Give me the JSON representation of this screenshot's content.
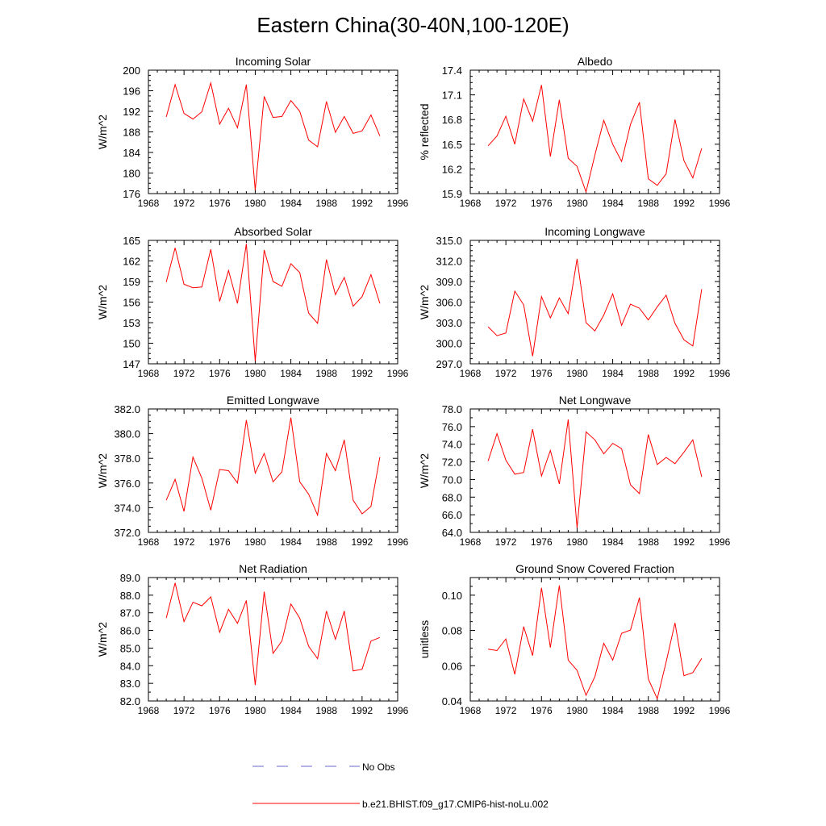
{
  "page_title": "Eastern China(30-40N,100-120E)",
  "legend": [
    {
      "label": "No Obs",
      "color": "#6a6acd",
      "dash": true
    },
    {
      "label": "b.e21.BHIST.f09_g17.CMIP6-hist-noLu.002",
      "color": "#ff0000",
      "dash": false
    }
  ],
  "chart_data": [
    {
      "type": "line",
      "title": "Incoming Solar",
      "ylabel": "W/m^2",
      "xlim": [
        1968,
        1996
      ],
      "ylim": [
        176,
        200
      ],
      "xticks": [
        "1968",
        "1972",
        "1976",
        "1980",
        "1984",
        "1988",
        "1992",
        "1996"
      ],
      "yticks": [
        "176",
        "180",
        "184",
        "188",
        "192",
        "196",
        "200"
      ],
      "x": [
        1970,
        1971,
        1972,
        1973,
        1974,
        1975,
        1976,
        1977,
        1978,
        1979,
        1980,
        1981,
        1982,
        1983,
        1984,
        1985,
        1986,
        1987,
        1988,
        1989,
        1990,
        1991,
        1992,
        1993,
        1994
      ],
      "series": [
        {
          "values": [
            190.9,
            197.2,
            191.6,
            190.5,
            191.9,
            197.5,
            189.5,
            192.6,
            188.8,
            197.2,
            176.7,
            194.9,
            190.8,
            191.0,
            194.1,
            192.0,
            186.4,
            185.1,
            193.9,
            187.9,
            191.0,
            187.7,
            188.2,
            191.3,
            187.2
          ],
          "color": "#ff0000"
        }
      ]
    },
    {
      "type": "line",
      "title": "Albedo",
      "ylabel": "% reflected",
      "xlim": [
        1968,
        1996
      ],
      "ylim": [
        15.9,
        17.4
      ],
      "xticks": [
        "1968",
        "1972",
        "1976",
        "1980",
        "1984",
        "1988",
        "1992",
        "1996"
      ],
      "yticks": [
        "15.9",
        "16.2",
        "16.5",
        "16.8",
        "17.1",
        "17.4"
      ],
      "x": [
        1970,
        1971,
        1972,
        1973,
        1974,
        1975,
        1976,
        1977,
        1978,
        1979,
        1980,
        1981,
        1982,
        1983,
        1984,
        1985,
        1986,
        1987,
        1988,
        1989,
        1990,
        1991,
        1992,
        1993,
        1994
      ],
      "series": [
        {
          "values": [
            16.48,
            16.6,
            16.84,
            16.5,
            17.05,
            16.78,
            17.22,
            16.35,
            17.04,
            16.33,
            16.23,
            15.92,
            16.37,
            16.79,
            16.5,
            16.29,
            16.74,
            17.01,
            16.08,
            16.0,
            16.14,
            16.8,
            16.3,
            16.09,
            16.45
          ],
          "color": "#ff0000"
        }
      ]
    },
    {
      "type": "line",
      "title": "Absorbed Solar",
      "ylabel": "W/m^2",
      "xlim": [
        1968,
        1996
      ],
      "ylim": [
        147,
        165
      ],
      "xticks": [
        "1968",
        "1972",
        "1976",
        "1980",
        "1984",
        "1988",
        "1992",
        "1996"
      ],
      "yticks": [
        "147",
        "150",
        "153",
        "156",
        "159",
        "162",
        "165"
      ],
      "x": [
        1970,
        1971,
        1972,
        1973,
        1974,
        1975,
        1976,
        1977,
        1978,
        1979,
        1980,
        1981,
        1982,
        1983,
        1984,
        1985,
        1986,
        1987,
        1988,
        1989,
        1990,
        1991,
        1992,
        1993,
        1994
      ],
      "series": [
        {
          "values": [
            158.9,
            163.9,
            158.6,
            158.1,
            158.2,
            163.7,
            156.1,
            160.6,
            155.8,
            164.5,
            147.4,
            163.6,
            159.0,
            158.3,
            161.6,
            160.3,
            154.4,
            152.9,
            162.2,
            157.1,
            159.6,
            155.4,
            156.8,
            160.0,
            155.8
          ],
          "color": "#ff0000"
        }
      ]
    },
    {
      "type": "line",
      "title": "Incoming Longwave",
      "ylabel": "W/m^2",
      "xlim": [
        1968,
        1996
      ],
      "ylim": [
        297.0,
        315.0
      ],
      "xticks": [
        "1968",
        "1972",
        "1976",
        "1980",
        "1984",
        "1988",
        "1992",
        "1996"
      ],
      "yticks": [
        "297.0",
        "300.0",
        "303.0",
        "306.0",
        "309.0",
        "312.0",
        "315.0"
      ],
      "x": [
        1970,
        1971,
        1972,
        1973,
        1974,
        1975,
        1976,
        1977,
        1978,
        1979,
        1980,
        1981,
        1982,
        1983,
        1984,
        1985,
        1986,
        1987,
        1988,
        1989,
        1990,
        1991,
        1992,
        1993,
        1994
      ],
      "series": [
        {
          "values": [
            302.4,
            301.1,
            301.5,
            307.6,
            305.6,
            298.1,
            306.8,
            303.7,
            306.6,
            304.3,
            312.3,
            303.0,
            301.8,
            304.1,
            307.2,
            302.6,
            305.7,
            305.1,
            303.4,
            305.3,
            307.0,
            302.9,
            300.5,
            299.6,
            307.9
          ],
          "color": "#ff0000"
        }
      ]
    },
    {
      "type": "line",
      "title": "Emitted Longwave",
      "ylabel": "W/m^2",
      "xlim": [
        1968,
        1996
      ],
      "ylim": [
        372.0,
        382.0
      ],
      "xticks": [
        "1968",
        "1972",
        "1976",
        "1980",
        "1984",
        "1988",
        "1992",
        "1996"
      ],
      "yticks": [
        "372.0",
        "374.0",
        "376.0",
        "378.0",
        "380.0",
        "382.0"
      ],
      "x": [
        1970,
        1971,
        1972,
        1973,
        1974,
        1975,
        1976,
        1977,
        1978,
        1979,
        1980,
        1981,
        1982,
        1983,
        1984,
        1985,
        1986,
        1987,
        1988,
        1989,
        1990,
        1991,
        1992,
        1993,
        1994
      ],
      "series": [
        {
          "values": [
            374.6,
            376.3,
            373.7,
            378.1,
            376.4,
            373.8,
            377.1,
            377.0,
            376.0,
            381.1,
            376.8,
            378.4,
            376.1,
            376.9,
            381.3,
            376.1,
            375.1,
            373.4,
            378.4,
            377.0,
            379.5,
            374.6,
            373.5,
            374.1,
            378.1
          ],
          "color": "#ff0000"
        }
      ]
    },
    {
      "type": "line",
      "title": "Net Longwave",
      "ylabel": "W/m^2",
      "xlim": [
        1968,
        1996
      ],
      "ylim": [
        64.0,
        78.0
      ],
      "xticks": [
        "1968",
        "1972",
        "1976",
        "1980",
        "1984",
        "1988",
        "1992",
        "1996"
      ],
      "yticks": [
        "64.0",
        "66.0",
        "68.0",
        "70.0",
        "72.0",
        "74.0",
        "76.0",
        "78.0"
      ],
      "x": [
        1970,
        1971,
        1972,
        1973,
        1974,
        1975,
        1976,
        1977,
        1978,
        1979,
        1980,
        1981,
        1982,
        1983,
        1984,
        1985,
        1986,
        1987,
        1988,
        1989,
        1990,
        1991,
        1992,
        1993,
        1994
      ],
      "series": [
        {
          "values": [
            72.1,
            75.2,
            72.2,
            70.6,
            70.8,
            75.7,
            70.4,
            73.3,
            69.5,
            76.8,
            64.5,
            75.4,
            74.5,
            72.9,
            74.1,
            73.5,
            69.4,
            68.4,
            75.1,
            71.7,
            72.5,
            71.8,
            73.1,
            74.5,
            70.3
          ],
          "color": "#ff0000"
        }
      ]
    },
    {
      "type": "line",
      "title": "Net Radiation",
      "ylabel": "W/m^2",
      "xlim": [
        1968,
        1996
      ],
      "ylim": [
        82.0,
        89.0
      ],
      "xticks": [
        "1968",
        "1972",
        "1976",
        "1980",
        "1984",
        "1988",
        "1992",
        "1996"
      ],
      "yticks": [
        "82.0",
        "83.0",
        "84.0",
        "85.0",
        "86.0",
        "87.0",
        "88.0",
        "89.0"
      ],
      "x": [
        1970,
        1971,
        1972,
        1973,
        1974,
        1975,
        1976,
        1977,
        1978,
        1979,
        1980,
        1981,
        1982,
        1983,
        1984,
        1985,
        1986,
        1987,
        1988,
        1989,
        1990,
        1991,
        1992,
        1993,
        1994
      ],
      "series": [
        {
          "values": [
            86.7,
            88.7,
            86.5,
            87.6,
            87.4,
            87.9,
            85.9,
            87.2,
            86.4,
            87.7,
            82.9,
            88.2,
            84.7,
            85.4,
            87.5,
            86.7,
            85.1,
            84.4,
            87.1,
            85.5,
            87.1,
            83.7,
            83.8,
            85.4,
            85.6
          ],
          "color": "#ff0000"
        }
      ]
    },
    {
      "type": "line",
      "title": "Ground Snow Covered Fraction",
      "ylabel": "unitless",
      "xlim": [
        1968,
        1996
      ],
      "ylim": [
        0.04,
        0.11
      ],
      "xticks": [
        "1968",
        "1972",
        "1976",
        "1980",
        "1984",
        "1988",
        "1992",
        "1996"
      ],
      "yticks": [
        "0.04",
        "0.06",
        "0.08",
        "0.10"
      ],
      "x": [
        1970,
        1971,
        1972,
        1973,
        1974,
        1975,
        1976,
        1977,
        1978,
        1979,
        1980,
        1981,
        1982,
        1983,
        1984,
        1985,
        1986,
        1987,
        1988,
        1989,
        1990,
        1991,
        1992,
        1993,
        1994
      ],
      "series": [
        {
          "values": [
            0.0694,
            0.0686,
            0.0752,
            0.0551,
            0.0822,
            0.0657,
            0.1042,
            0.0703,
            0.1055,
            0.0632,
            0.0574,
            0.0432,
            0.0538,
            0.0727,
            0.0632,
            0.0784,
            0.0802,
            0.0986,
            0.0525,
            0.0413,
            0.0621,
            0.0843,
            0.0543,
            0.0561,
            0.0641
          ],
          "color": "#ff0000"
        }
      ]
    }
  ]
}
